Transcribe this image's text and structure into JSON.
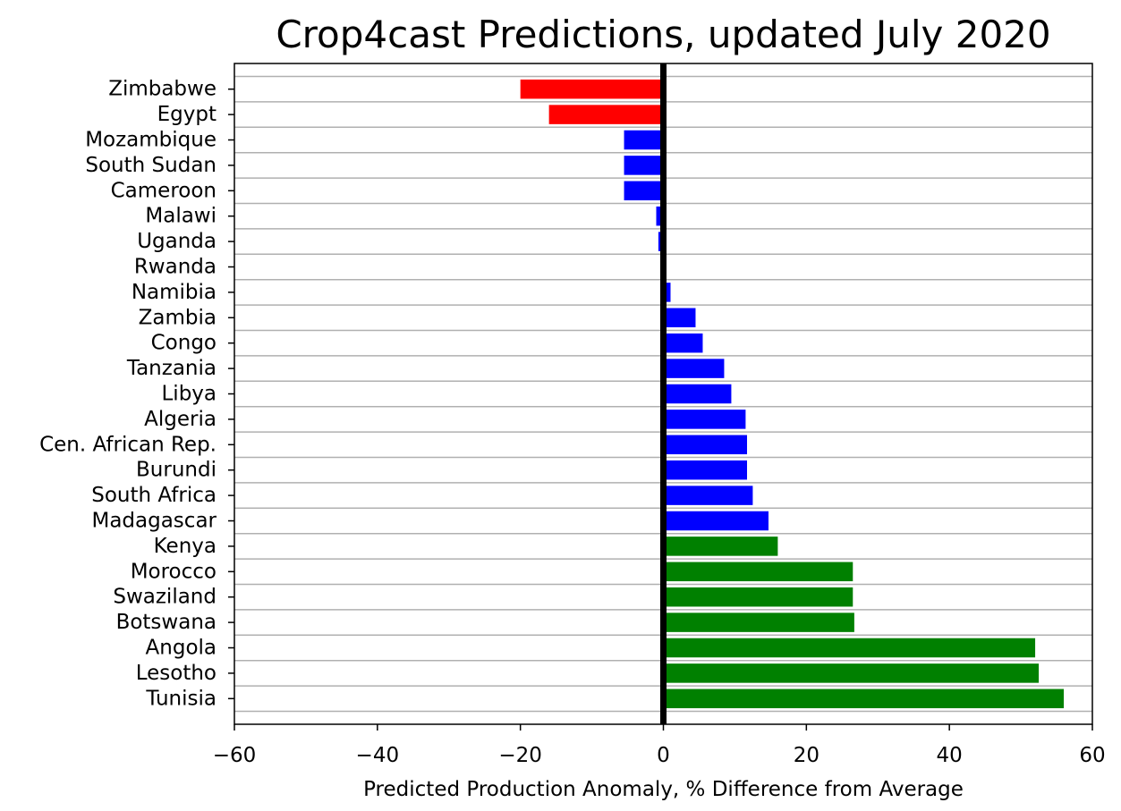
{
  "chart_data": {
    "type": "bar",
    "orientation": "horizontal",
    "title": "Crop4cast Predictions, updated July 2020",
    "xlabel": "Predicted Production Anomaly, % Difference from Average",
    "ylabel": "",
    "xlim": [
      -60,
      60
    ],
    "xticks": [
      -60,
      -40,
      -20,
      0,
      20,
      40,
      60
    ],
    "xtick_labels": [
      "−60",
      "−40",
      "−20",
      "0",
      "20",
      "40",
      "60"
    ],
    "grid": "horizontal lines on",
    "zero_line": true,
    "categories": [
      "Zimbabwe",
      "Egypt",
      "Mozambique",
      "South Sudan",
      "Cameroon",
      "Malawi",
      "Uganda",
      "Rwanda",
      "Namibia",
      "Zambia",
      "Congo",
      "Tanzania",
      "Libya",
      "Algeria",
      "Cen. African Rep.",
      "Burundi",
      "South Africa",
      "Madagascar",
      "Kenya",
      "Morocco",
      "Swaziland",
      "Botswana",
      "Angola",
      "Lesotho",
      "Tunisia"
    ],
    "values": [
      -20,
      -16,
      -5.5,
      -5.5,
      -5.5,
      -1,
      -0.7,
      0,
      1,
      4.5,
      5.5,
      8.5,
      9.5,
      11.5,
      11.7,
      11.7,
      12.5,
      14.7,
      16,
      26.5,
      26.5,
      26.7,
      52,
      52.5,
      56
    ],
    "bar_colors": [
      "#ff0000",
      "#ff0000",
      "#0000ff",
      "#0000ff",
      "#0000ff",
      "#0000ff",
      "#0000ff",
      "#0000ff",
      "#0000ff",
      "#0000ff",
      "#0000ff",
      "#0000ff",
      "#0000ff",
      "#0000ff",
      "#0000ff",
      "#0000ff",
      "#0000ff",
      "#0000ff",
      "#008000",
      "#008000",
      "#008000",
      "#008000",
      "#008000",
      "#008000",
      "#008000"
    ]
  },
  "colors": {
    "negative": "#ff0000",
    "moderate": "#0000ff",
    "positive": "#008000",
    "grid": "#b0b0b0",
    "zero_line": "#000000"
  }
}
